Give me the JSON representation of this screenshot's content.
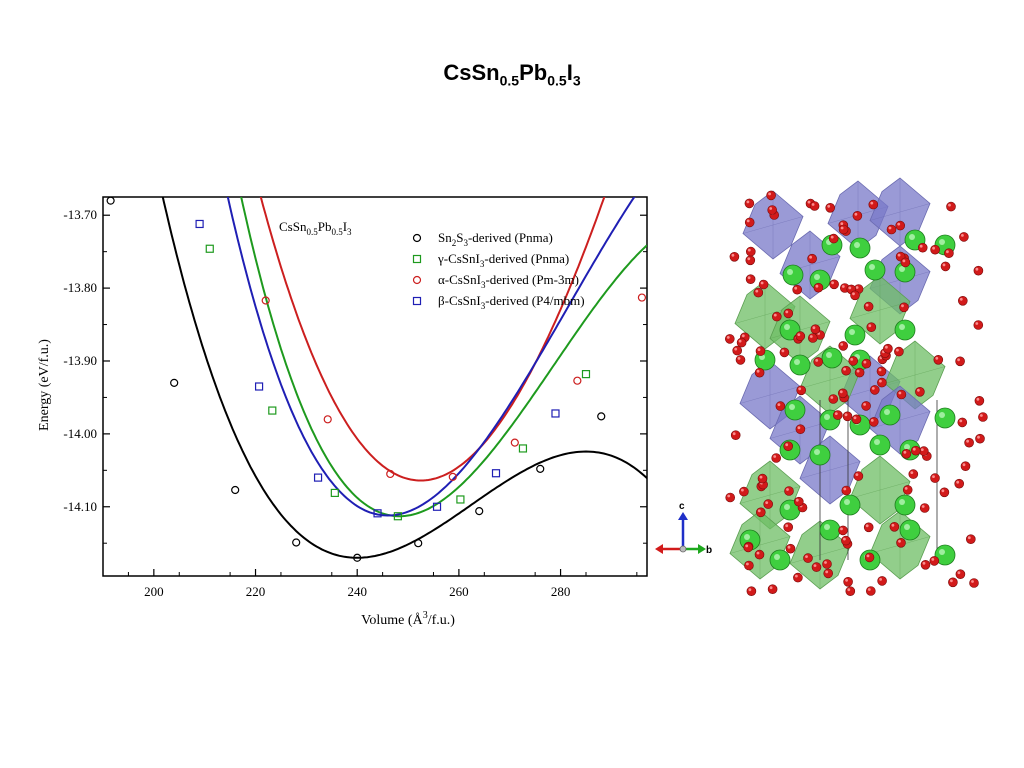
{
  "slide": {
    "title_main": "CsSn",
    "title_sub1": "0.5",
    "title_mid": "Pb",
    "title_sub2": "0.5",
    "title_end": "I",
    "title_sub3": "3"
  },
  "chart_data": {
    "type": "line",
    "inset_title": {
      "a": "CsSn",
      "s1": "0.5",
      "b": "Pb",
      "s2": "0.5",
      "c": "I",
      "s3": "3"
    },
    "xlabel": {
      "pre": "Volume (",
      "unit": "Å",
      "sup": "3",
      "post": "/f.u.)"
    },
    "ylabel": "Energy (eV/f.u.)",
    "xlim": [
      190,
      297
    ],
    "ylim": [
      -14.195,
      -13.675
    ],
    "xticks": [
      200,
      220,
      240,
      260,
      280
    ],
    "yticks": [
      -13.7,
      -13.8,
      -13.9,
      -14.0,
      -14.1
    ],
    "ytick_labels": [
      "-13.70",
      "-13.80",
      "-13.90",
      "-14.00",
      "-14.10"
    ],
    "series": [
      {
        "name": "Sn2S3-derived (Pnma)",
        "legend": {
          "a": "Sn",
          "s1": "2",
          "b": "S",
          "s2": "3",
          "c": "-derived (Pnma)"
        },
        "color": "#000000",
        "marker": "circle",
        "fit": {
          "V0": 240,
          "E0": -14.17,
          "a": 0.000216,
          "b": 3.2e-06
        },
        "x": [
          191.5,
          204,
          216,
          228,
          240,
          252,
          264,
          276,
          288
        ],
        "y": [
          -13.68,
          -13.93,
          -14.077,
          -14.149,
          -14.17,
          -14.15,
          -14.106,
          -14.048,
          -13.976
        ]
      },
      {
        "name": "γ-CsSnI3-derived (Pnma)",
        "legend": {
          "a": "γ-CsSnI",
          "s1": "3",
          "c": "-derived (Pnma)"
        },
        "color": "#1e9a1e",
        "marker": "square",
        "fit": {
          "V0": 248.3,
          "E0": -14.113,
          "a": 0.000337,
          "b": 3.7e-06
        },
        "x": [
          211,
          223.3,
          235.6,
          248,
          260.3,
          272.6,
          285
        ],
        "y": [
          -13.746,
          -13.968,
          -14.081,
          -14.113,
          -14.09,
          -14.02,
          -13.918
        ]
      },
      {
        "name": "α-CsSnI3-derived (Pm-3m)",
        "legend": {
          "a": "α-CsSnI",
          "s1": "3",
          "c": "-derived (Pm-3m)"
        },
        "color": "#cc1f1f",
        "marker": "circle",
        "fit": {
          "V0": 252.5,
          "E0": -14.064,
          "a": 0.000349,
          "b": 1.4e-06
        },
        "x": [
          222,
          234.2,
          246.5,
          258.8,
          271,
          283.3,
          296
        ],
        "y": [
          -13.817,
          -13.98,
          -14.055,
          -14.059,
          -14.012,
          -13.927,
          -13.813
        ]
      },
      {
        "name": "β-CsSnI3-derived (P4/mbm)",
        "legend": {
          "a": "β-CsSnI",
          "s1": "3",
          "c": "-derived (P4/mbm)"
        },
        "color": "#1f1fb4",
        "marker": "square",
        "fit": {
          "V0": 246,
          "E0": -14.112,
          "a": 0.000341,
          "b": 3.2e-06
        },
        "x": [
          209,
          220.7,
          232.3,
          244,
          255.7,
          267.3,
          279
        ],
        "y": [
          -13.712,
          -13.935,
          -14.06,
          -14.109,
          -14.1,
          -14.054,
          -13.972
        ]
      }
    ]
  },
  "axes_triad": {
    "c": "c",
    "b": "b"
  }
}
